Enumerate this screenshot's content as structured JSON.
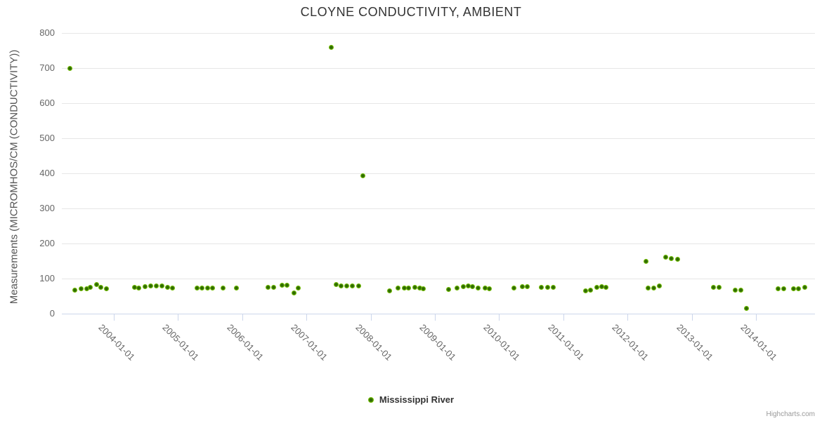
{
  "title": "CLOYNE CONDUCTIVITY, AMBIENT",
  "legend": {
    "series_label": "Mississippi River"
  },
  "credits": "Highcharts.com",
  "colors": {
    "marker_outer": "#84cb07",
    "marker_inner": "#2f6b02",
    "grid": "#e6e6e6",
    "axis_line": "#ccd6eb",
    "title_text": "#333333",
    "axis_text": "#666666",
    "credits_text": "#999999"
  },
  "chart_data": {
    "type": "scatter",
    "title": "CLOYNE CONDUCTIVITY, AMBIENT",
    "xlabel": "",
    "ylabel": "Measurements (MICROMHOS/CM (CONDUCTIVITY))",
    "ylim": [
      0,
      800
    ],
    "y_ticks": [
      0,
      100,
      200,
      300,
      400,
      500,
      600,
      700,
      800
    ],
    "x_ticks": [
      "2004-01-01",
      "2005-01-01",
      "2006-01-01",
      "2007-01-01",
      "2008-01-01",
      "2009-01-01",
      "2010-01-01",
      "2011-01-01",
      "2012-01-01",
      "2013-01-01",
      "2014-01-01"
    ],
    "grid": "horizontal",
    "legend_position": "bottom-center",
    "series": [
      {
        "name": "Mississippi River",
        "points": [
          [
            "2003-04-25",
            700
          ],
          [
            "2003-05-22",
            68
          ],
          [
            "2003-06-27",
            72
          ],
          [
            "2003-07-28",
            72
          ],
          [
            "2003-08-21",
            76
          ],
          [
            "2003-09-24",
            84
          ],
          [
            "2003-10-19",
            76
          ],
          [
            "2003-11-21",
            72
          ],
          [
            "2004-04-26",
            76
          ],
          [
            "2004-05-22",
            74
          ],
          [
            "2004-06-27",
            78
          ],
          [
            "2004-07-30",
            80
          ],
          [
            "2004-09-01",
            80
          ],
          [
            "2004-10-01",
            80
          ],
          [
            "2004-11-03",
            76
          ],
          [
            "2004-12-01",
            74
          ],
          [
            "2005-04-16",
            74
          ],
          [
            "2005-05-16",
            74
          ],
          [
            "2005-06-17",
            74
          ],
          [
            "2005-07-16",
            74
          ],
          [
            "2005-09-13",
            74
          ],
          [
            "2005-11-29",
            74
          ],
          [
            "2006-05-26",
            76
          ],
          [
            "2006-06-27",
            76
          ],
          [
            "2006-08-14",
            82
          ],
          [
            "2006-09-13",
            82
          ],
          [
            "2006-10-23",
            60
          ],
          [
            "2006-11-17",
            74
          ],
          [
            "2007-05-22",
            760
          ],
          [
            "2007-06-17",
            84
          ],
          [
            "2007-07-16",
            80
          ],
          [
            "2007-08-18",
            80
          ],
          [
            "2007-09-20",
            80
          ],
          [
            "2007-10-23",
            80
          ],
          [
            "2007-11-18",
            393
          ],
          [
            "2008-04-19",
            66
          ],
          [
            "2008-06-05",
            73
          ],
          [
            "2008-07-08",
            73
          ],
          [
            "2008-08-03",
            74
          ],
          [
            "2008-09-09",
            75
          ],
          [
            "2008-10-08",
            74
          ],
          [
            "2008-10-26",
            72
          ],
          [
            "2009-03-18",
            70
          ],
          [
            "2009-05-04",
            74
          ],
          [
            "2009-06-10",
            78
          ],
          [
            "2009-07-08",
            80
          ],
          [
            "2009-08-03",
            78
          ],
          [
            "2009-09-05",
            74
          ],
          [
            "2009-10-12",
            74
          ],
          [
            "2009-11-06",
            72
          ],
          [
            "2010-03-25",
            74
          ],
          [
            "2010-05-12",
            78
          ],
          [
            "2010-06-10",
            78
          ],
          [
            "2010-08-29",
            76
          ],
          [
            "2010-10-05",
            76
          ],
          [
            "2010-11-06",
            76
          ],
          [
            "2011-05-04",
            66
          ],
          [
            "2011-06-05",
            68
          ],
          [
            "2011-07-08",
            76
          ],
          [
            "2011-08-07",
            78
          ],
          [
            "2011-09-01",
            76
          ],
          [
            "2012-04-15",
            150
          ],
          [
            "2012-04-26",
            74
          ],
          [
            "2012-05-29",
            74
          ],
          [
            "2012-07-01",
            80
          ],
          [
            "2012-08-03",
            162
          ],
          [
            "2012-09-05",
            158
          ],
          [
            "2012-10-12",
            156
          ],
          [
            "2013-05-01",
            76
          ],
          [
            "2013-06-05",
            76
          ],
          [
            "2013-09-05",
            68
          ],
          [
            "2013-10-08",
            68
          ],
          [
            "2013-11-06",
            15
          ],
          [
            "2014-05-04",
            72
          ],
          [
            "2014-06-05",
            72
          ],
          [
            "2014-08-01",
            72
          ],
          [
            "2014-09-01",
            72
          ],
          [
            "2014-10-05",
            76
          ]
        ]
      }
    ]
  }
}
